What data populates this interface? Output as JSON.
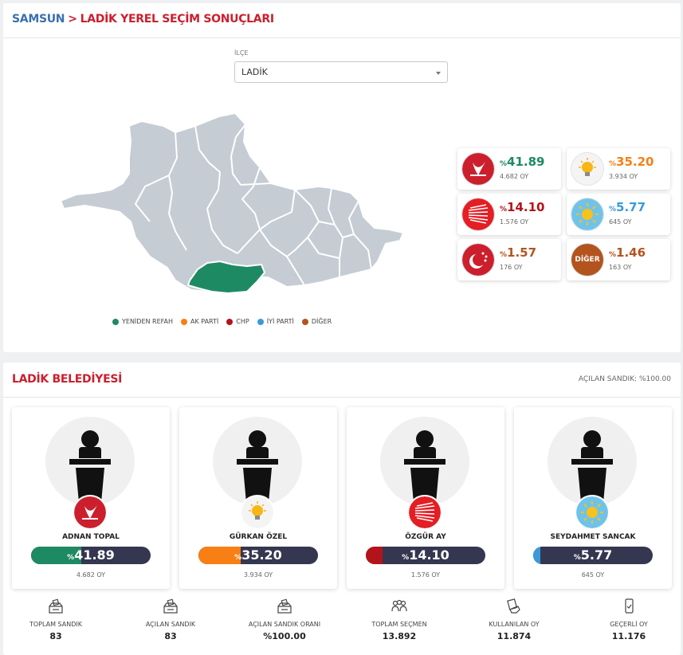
{
  "breadcrumb": {
    "province": "SAMSUN",
    "separator": ">",
    "page": "LADİK YEREL SEÇİM SONUÇLARI"
  },
  "district_select": {
    "label": "İLÇE",
    "value": "LADİK"
  },
  "legend": [
    {
      "name": "YENİDEN REFAH",
      "color": "#1e8a64"
    },
    {
      "name": "AK PARTİ",
      "color": "#f77f14"
    },
    {
      "name": "CHP",
      "color": "#b3141b"
    },
    {
      "name": "İYİ PARTİ",
      "color": "#3a9ad9"
    },
    {
      "name": "DİĞER",
      "color": "#b3541e"
    }
  ],
  "party_results": [
    {
      "party": "yeniden-refah",
      "pct_prefix": "%",
      "pct": "41.89",
      "votes": "4.682 OY",
      "color": "#1e8a64"
    },
    {
      "party": "ak-parti",
      "pct_prefix": "%",
      "pct": "35.20",
      "votes": "3.934 OY",
      "color": "#f77f14"
    },
    {
      "party": "chp",
      "pct_prefix": "%",
      "pct": "14.10",
      "votes": "1.576 OY",
      "color": "#b3141b"
    },
    {
      "party": "iyi-parti",
      "pct_prefix": "%",
      "pct": "5.77",
      "votes": "645 OY",
      "color": "#3a9ad9"
    },
    {
      "party": "saadet",
      "pct_prefix": "%",
      "pct": "1.57",
      "votes": "176 OY",
      "color": "#b3541e"
    },
    {
      "party": "diger",
      "pct_prefix": "%",
      "pct": "1.46",
      "votes": "163 OY",
      "color": "#b3541e",
      "logo_text": "DİĞER"
    }
  ],
  "municipality": {
    "title": "LADİK BELEDİYESİ",
    "opened": "AÇILAN SANDIK: %100.00",
    "candidates": [
      {
        "name": "ADNAN TOPAL",
        "pct_prefix": "%",
        "pct": "41.89",
        "fill_percent": 41.89,
        "votes": "4.682 OY",
        "color": "#1e8a64",
        "party": "yeniden-refah"
      },
      {
        "name": "GÜRKAN ÖZEL",
        "pct_prefix": "%",
        "pct": "35.20",
        "fill_percent": 35.2,
        "votes": "3.934 OY",
        "color": "#f77f14",
        "party": "ak-parti"
      },
      {
        "name": "ÖZGÜR AY",
        "pct_prefix": "%",
        "pct": "14.10",
        "fill_percent": 14.1,
        "votes": "1.576 OY",
        "color": "#b3141b",
        "party": "chp"
      },
      {
        "name": "SEYDAHMET SANCAK",
        "pct_prefix": "%",
        "pct": "5.77",
        "fill_percent": 5.77,
        "votes": "645 OY",
        "color": "#3a9ad9",
        "party": "iyi-parti"
      }
    ]
  },
  "stats": [
    {
      "label": "TOPLAM SANDIK",
      "value": "83",
      "icon": "ballot-box-icon"
    },
    {
      "label": "AÇILAN SANDIK",
      "value": "83",
      "icon": "ballot-box-icon"
    },
    {
      "label": "AÇILAN SANDIK ORANI",
      "value": "%100.00",
      "icon": "ballot-box-icon"
    },
    {
      "label": "TOPLAM SEÇMEN",
      "value": "13.892",
      "icon": "people-icon"
    },
    {
      "label": "KULLANILAN OY",
      "value": "11.874",
      "icon": "vote-hand-icon"
    },
    {
      "label": "GEÇERLİ OY",
      "value": "11.176",
      "icon": "phone-check-icon"
    }
  ]
}
